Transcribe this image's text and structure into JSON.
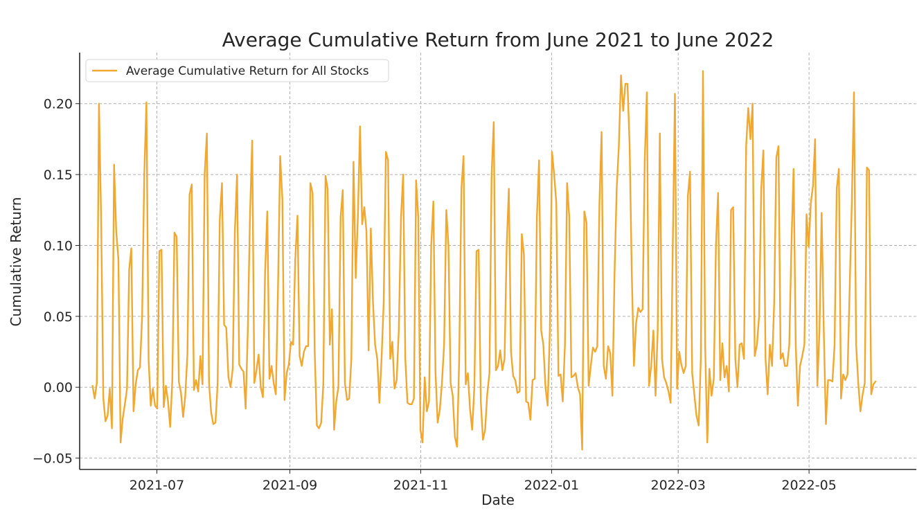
{
  "chart_data": {
    "type": "line",
    "title": "Average Cumulative Return from June 2021 to June 2022",
    "xlabel": "Date",
    "ylabel": "Cumulative Return",
    "x_range": [
      "2021-05-26",
      "2022-06-20"
    ],
    "ylim": [
      -0.058,
      0.236
    ],
    "x_ticks": [
      {
        "date": "2021-07-01",
        "label": "2021-07"
      },
      {
        "date": "2021-09-01",
        "label": "2021-09"
      },
      {
        "date": "2021-11-01",
        "label": "2021-11"
      },
      {
        "date": "2022-01-01",
        "label": "2022-01"
      },
      {
        "date": "2022-03-01",
        "label": "2022-03"
      },
      {
        "date": "2022-05-01",
        "label": "2022-05"
      }
    ],
    "y_ticks": [
      {
        "value": -0.05,
        "label": "−0.05"
      },
      {
        "value": 0.0,
        "label": "0.00"
      },
      {
        "value": 0.05,
        "label": "0.05"
      },
      {
        "value": 0.1,
        "label": "0.10"
      },
      {
        "value": 0.15,
        "label": "0.15"
      },
      {
        "value": 0.2,
        "label": "0.20"
      }
    ],
    "grid": true,
    "legend_position": "top-left",
    "series": [
      {
        "name": "Average Cumulative Return for All Stocks",
        "color": "#f0a830",
        "start_date": "2021-06-01",
        "end_date": "2022-06-01",
        "values": [
          0.001,
          -0.008,
          0.003,
          0.2,
          0.12,
          -0.008,
          -0.024,
          -0.02,
          -0.001,
          -0.029,
          0.157,
          0.11,
          0.09,
          -0.039,
          -0.022,
          -0.012,
          -0.001,
          0.083,
          0.098,
          -0.017,
          0.002,
          0.012,
          0.014,
          0.05,
          0.15,
          0.201,
          0.019,
          -0.013,
          -0.001,
          -0.013,
          -0.015,
          0.096,
          0.097,
          -0.014,
          0.001,
          -0.01,
          -0.028,
          0.005,
          0.109,
          0.106,
          0.004,
          -0.004,
          -0.021,
          -0.006,
          0.023,
          0.136,
          0.143,
          -0.002,
          0.005,
          -0.003,
          0.022,
          0.002,
          0.15,
          0.179,
          0.003,
          -0.018,
          -0.026,
          -0.025,
          0.002,
          0.118,
          0.144,
          0.044,
          0.042,
          0.007,
          0.0,
          0.013,
          0.11,
          0.15,
          0.016,
          0.013,
          0.011,
          -0.015,
          0.04,
          0.12,
          0.174,
          0.003,
          0.012,
          0.023,
          0.0,
          -0.007,
          0.08,
          0.124,
          0.006,
          0.015,
          0.003,
          -0.005,
          0.07,
          0.163,
          0.133,
          -0.009,
          0.01,
          0.016,
          0.032,
          0.03,
          0.09,
          0.121,
          0.022,
          0.015,
          0.025,
          0.029,
          0.029,
          0.144,
          0.137,
          0.025,
          -0.027,
          -0.029,
          -0.025,
          0.002,
          0.149,
          0.14,
          0.03,
          0.055,
          -0.03,
          -0.01,
          0.0,
          0.12,
          0.139,
          0.003,
          -0.009,
          -0.008,
          0.02,
          0.159,
          0.077,
          0.12,
          0.184,
          0.115,
          0.127,
          0.11,
          0.026,
          0.112,
          0.06,
          0.03,
          0.02,
          -0.011,
          0.02,
          0.06,
          0.166,
          0.16,
          0.02,
          0.032,
          -0.001,
          0.005,
          0.04,
          0.12,
          0.15,
          0.02,
          -0.011,
          -0.012,
          -0.012,
          -0.008,
          0.146,
          0.12,
          -0.03,
          -0.039,
          0.007,
          -0.017,
          -0.01,
          0.1,
          0.131,
          0.01,
          -0.025,
          -0.016,
          0.003,
          0.03,
          0.125,
          0.1,
          0.003,
          -0.006,
          -0.035,
          -0.042,
          0.02,
          0.14,
          0.163,
          0.002,
          0.01,
          -0.015,
          -0.03,
          0.0,
          0.096,
          0.097,
          -0.01,
          -0.037,
          -0.03,
          -0.005,
          0.01,
          0.15,
          0.187,
          0.012,
          0.015,
          0.026,
          0.012,
          0.02,
          0.1,
          0.14,
          0.025,
          0.008,
          0.005,
          -0.004,
          -0.003,
          0.108,
          0.093,
          -0.01,
          -0.011,
          -0.023,
          0.005,
          0.006,
          0.12,
          0.16,
          0.04,
          0.03,
          0.0,
          -0.013,
          0.04,
          0.166,
          0.15,
          0.13,
          0.008,
          0.009,
          -0.01,
          0.03,
          0.144,
          0.12,
          0.007,
          0.008,
          0.01,
          0.0,
          -0.005,
          -0.044,
          0.124,
          0.116,
          0.001,
          0.015,
          0.028,
          0.025,
          0.029,
          0.13,
          0.18,
          0.015,
          0.006,
          0.029,
          0.024,
          -0.006,
          0.08,
          0.14,
          0.17,
          0.22,
          0.195,
          0.214,
          0.214,
          0.17,
          0.08,
          0.015,
          0.045,
          0.056,
          0.053,
          0.055,
          0.16,
          0.208,
          0.001,
          0.015,
          0.04,
          -0.006,
          0.04,
          0.179,
          0.02,
          0.007,
          0.003,
          -0.003,
          -0.011,
          0.1,
          0.207,
          -0.001,
          0.025,
          0.016,
          0.01,
          0.015,
          0.135,
          0.152,
          0.01,
          -0.005,
          -0.02,
          -0.027,
          0.02,
          0.223,
          0.03,
          -0.039,
          0.013,
          -0.006,
          0.006,
          0.1,
          0.137,
          0.005,
          0.031,
          0.007,
          0.015,
          -0.003,
          0.125,
          0.127,
          0.02,
          0.0,
          0.03,
          0.031,
          0.02,
          0.17,
          0.197,
          0.175,
          0.2,
          0.022,
          0.03,
          0.05,
          0.14,
          0.167,
          0.02,
          -0.005,
          0.03,
          0.015,
          0.06,
          0.162,
          0.17,
          0.02,
          0.024,
          0.015,
          0.015,
          0.03,
          0.1,
          0.154,
          0.03,
          -0.013,
          0.015,
          0.022,
          0.03,
          0.122,
          0.099,
          0.13,
          0.142,
          0.175,
          0.001,
          0.04,
          0.123,
          0.04,
          -0.026,
          0.005,
          0.005,
          0.004,
          0.03,
          0.14,
          0.154,
          -0.008,
          0.009,
          0.005,
          0.009,
          0.07,
          0.13,
          0.208,
          0.03,
          0.003,
          -0.017,
          -0.005,
          0.003,
          0.155,
          0.153,
          -0.005,
          0.002,
          0.004
        ]
      }
    ]
  }
}
